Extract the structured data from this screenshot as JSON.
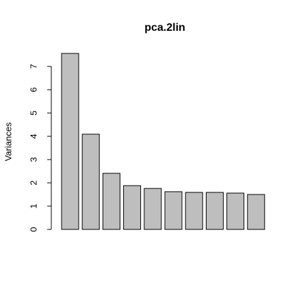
{
  "chart_data": {
    "type": "bar",
    "title": "pca.2lin",
    "y_label": "Variances",
    "values": [
      7.56,
      4.09,
      2.41,
      1.88,
      1.76,
      1.62,
      1.59,
      1.59,
      1.56,
      1.5
    ],
    "color": "#bebebe",
    "ylim": [
      0,
      7.56
    ],
    "yticks": [
      0,
      1,
      2,
      3,
      4,
      5,
      6,
      7
    ]
  }
}
